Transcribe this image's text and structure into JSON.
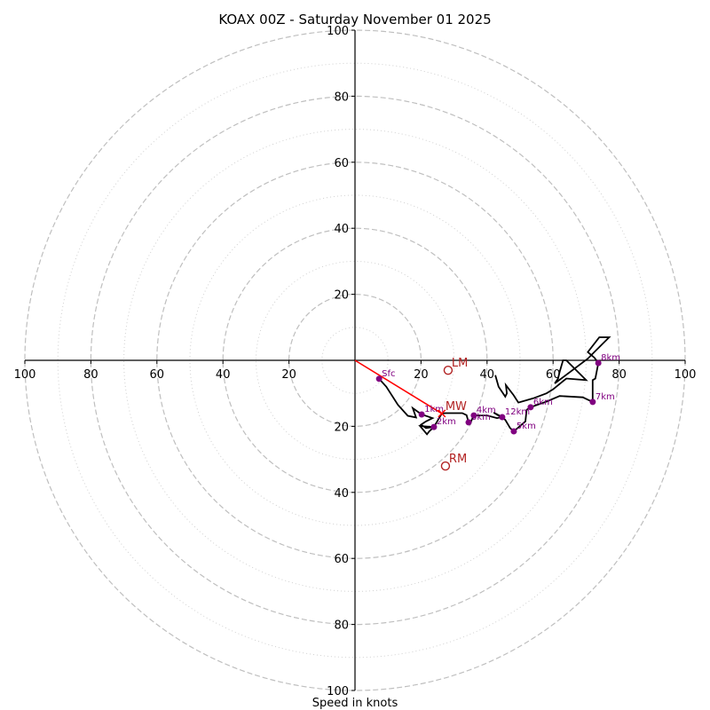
{
  "chart_data": {
    "type": "line",
    "subtype": "hodograph",
    "title": "KOAX 00Z - Saturday November 01 2025",
    "xlabel": "Speed in knots",
    "ylabel": "",
    "xlim": [
      -100,
      100
    ],
    "ylim": [
      -100,
      100
    ],
    "grid": true,
    "ring_major": [
      20,
      40,
      60,
      80,
      100
    ],
    "ring_minor": [
      10,
      30,
      50,
      70,
      90
    ],
    "x_tick_labels": [
      "100",
      "80",
      "60",
      "40",
      "20",
      "20",
      "40",
      "60",
      "80",
      "100"
    ],
    "x_tick_values": [
      -100,
      -80,
      -60,
      -40,
      -20,
      20,
      40,
      60,
      80,
      100
    ],
    "y_tick_labels": [
      "100",
      "80",
      "60",
      "40",
      "20",
      "20",
      "40",
      "60",
      "80",
      "100"
    ],
    "y_tick_values": [
      100,
      80,
      60,
      40,
      20,
      -20,
      -40,
      -60,
      -80,
      -100
    ],
    "series": [
      {
        "name": "hodograph trace",
        "color": "#000000",
        "points": [
          [
            7.3,
            -5.6
          ],
          [
            9.5,
            -8.0
          ],
          [
            13.0,
            -13.5
          ],
          [
            16.0,
            -16.8
          ],
          [
            18.5,
            -17.3
          ],
          [
            17.5,
            -14.5
          ],
          [
            20.2,
            -16.4
          ],
          [
            22.0,
            -17.0
          ],
          [
            23.5,
            -17.5
          ],
          [
            21.5,
            -18.5
          ],
          [
            20.0,
            -19.5
          ],
          [
            21.5,
            -20.5
          ],
          [
            23.9,
            -20.2
          ],
          [
            22.5,
            -21.5
          ],
          [
            21.8,
            -22.4
          ],
          [
            19.7,
            -19.9
          ],
          [
            23.9,
            -20.2
          ],
          [
            25.6,
            -17.3
          ],
          [
            26.3,
            -16.1
          ],
          [
            27.5,
            -16.0
          ],
          [
            32.5,
            -16.0
          ],
          [
            33.8,
            -16.6
          ],
          [
            34.4,
            -18.8
          ],
          [
            34.8,
            -19.2
          ],
          [
            36.0,
            -16.7
          ],
          [
            40.0,
            -16.7
          ],
          [
            43.0,
            -17.5
          ],
          [
            44.6,
            -17.2
          ],
          [
            42.0,
            -15.8
          ],
          [
            45.5,
            -18.0
          ],
          [
            47.0,
            -20.5
          ],
          [
            48.1,
            -21.5
          ],
          [
            51.6,
            -18.5
          ],
          [
            52.0,
            -15.0
          ],
          [
            53.2,
            -14.2
          ],
          [
            58.0,
            -12.5
          ],
          [
            62.0,
            -10.8
          ],
          [
            69.0,
            -11.2
          ],
          [
            72.0,
            -12.6
          ],
          [
            72.0,
            -6.0
          ],
          [
            72.8,
            -5.5
          ],
          [
            73.7,
            -0.8
          ],
          [
            72.5,
            0.8
          ],
          [
            70.5,
            2.5
          ],
          [
            74.0,
            7.0
          ],
          [
            77.0,
            7.0
          ],
          [
            73.0,
            3.0
          ],
          [
            70.5,
            0.5
          ],
          [
            60.5,
            -7.0
          ],
          [
            61.5,
            -5.5
          ],
          [
            62.0,
            -3.5
          ],
          [
            63.0,
            0.0
          ],
          [
            64.0,
            0.0
          ],
          [
            68.0,
            -4.0
          ],
          [
            70.0,
            -6.0
          ],
          [
            64.0,
            -5.5
          ],
          [
            60.0,
            -8.8
          ],
          [
            58.0,
            -10.0
          ],
          [
            54.0,
            -11.5
          ],
          [
            49.5,
            -12.8
          ],
          [
            48.0,
            -10.5
          ],
          [
            45.7,
            -7.5
          ],
          [
            46.0,
            -10.0
          ],
          [
            45.5,
            -11.0
          ],
          [
            43.5,
            -8.0
          ],
          [
            42.5,
            -4.5
          ]
        ]
      },
      {
        "name": "mean wind vector",
        "color": "#ff0000",
        "points": [
          [
            0,
            0
          ],
          [
            26.3,
            -16.1
          ]
        ]
      }
    ],
    "height_markers": [
      {
        "label": "Sfc",
        "u": 7.3,
        "v": -5.6
      },
      {
        "label": "1km",
        "u": 20.2,
        "v": -16.4
      },
      {
        "label": "2km",
        "u": 23.9,
        "v": -20.2
      },
      {
        "label": "3km",
        "u": 34.4,
        "v": -18.8
      },
      {
        "label": "4km",
        "u": 36.0,
        "v": -16.7
      },
      {
        "label": "12km",
        "u": 44.6,
        "v": -17.2
      },
      {
        "label": "5km",
        "u": 48.1,
        "v": -21.5
      },
      {
        "label": "6km",
        "u": 53.2,
        "v": -14.2
      },
      {
        "label": "7km",
        "u": 72.0,
        "v": -12.6
      },
      {
        "label": "8km",
        "u": 73.7,
        "v": -0.8
      }
    ],
    "storm_motion": [
      {
        "label": "LM",
        "u": 28.2,
        "v": -3.0,
        "marker": "circle"
      },
      {
        "label": "MW",
        "u": 26.3,
        "v": -16.1,
        "marker": "x"
      },
      {
        "label": "RM",
        "u": 27.4,
        "v": -32.0,
        "marker": "circle"
      }
    ],
    "colors": {
      "trace": "#000000",
      "height_marker": "#800080",
      "storm_motion": "#b22222",
      "mean_wind": "#ff0000",
      "grid": "#bfbfbf"
    }
  }
}
